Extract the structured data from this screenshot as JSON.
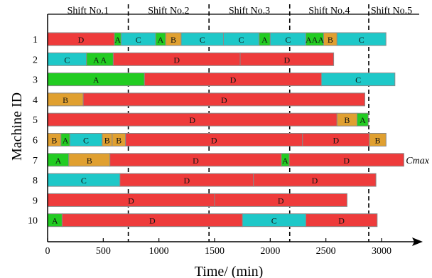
{
  "chart_data": {
    "type": "gantt",
    "xlabel": "Time/ (min)",
    "ylabel": "Machine ID",
    "xlim": [
      0,
      3300
    ],
    "x_ticks": [
      0,
      500,
      1000,
      1500,
      2000,
      2500,
      3000
    ],
    "machines": [
      "1",
      "2",
      "3",
      "4",
      "5",
      "6",
      "7",
      "8",
      "9",
      "10"
    ],
    "colors": {
      "A": "#22cc22",
      "B": "#e0a030",
      "C": "#1ec8c8",
      "D": "#ee3b3b"
    },
    "shifts": [
      {
        "label": "Shift No.1",
        "end": 725
      },
      {
        "label": "Shift No.2",
        "end": 1450
      },
      {
        "label": "Shift No.3",
        "end": 2175
      },
      {
        "label": "Shift No.4",
        "end": 2885
      },
      {
        "label": "Shift No.5"
      }
    ],
    "cmax_label": "Cmax",
    "cmax_machine": "7",
    "tasks": [
      {
        "m": "1",
        "t": "D",
        "s": 0,
        "e": 600,
        "label": "D"
      },
      {
        "m": "1",
        "t": "A",
        "s": 600,
        "e": 660,
        "label": "A"
      },
      {
        "m": "1",
        "t": "C",
        "s": 660,
        "e": 970,
        "label": "C"
      },
      {
        "m": "1",
        "t": "A",
        "s": 970,
        "e": 1060,
        "label": "A"
      },
      {
        "m": "1",
        "t": "B",
        "s": 1060,
        "e": 1200,
        "label": "B"
      },
      {
        "m": "1",
        "t": "C",
        "s": 1200,
        "e": 1580,
        "label": "C"
      },
      {
        "m": "1",
        "t": "C",
        "s": 1580,
        "e": 1900,
        "label": "C"
      },
      {
        "m": "1",
        "t": "A",
        "s": 1900,
        "e": 2000,
        "label": "A"
      },
      {
        "m": "1",
        "t": "C",
        "s": 2000,
        "e": 2320,
        "label": "C"
      },
      {
        "m": "1",
        "t": "A",
        "s": 2320,
        "e": 2480,
        "label": "AAA"
      },
      {
        "m": "1",
        "t": "B",
        "s": 2480,
        "e": 2600,
        "label": "B"
      },
      {
        "m": "1",
        "t": "C",
        "s": 2600,
        "e": 3040,
        "label": "C"
      },
      {
        "m": "2",
        "t": "C",
        "s": 0,
        "e": 350,
        "label": "C"
      },
      {
        "m": "2",
        "t": "A",
        "s": 350,
        "e": 590,
        "label": "A A"
      },
      {
        "m": "2",
        "t": "D",
        "s": 590,
        "e": 1730,
        "label": "D"
      },
      {
        "m": "2",
        "t": "D",
        "s": 1730,
        "e": 2570,
        "label": "D"
      },
      {
        "m": "3",
        "t": "A",
        "s": 0,
        "e": 870,
        "label": "A"
      },
      {
        "m": "3",
        "t": "D",
        "s": 870,
        "e": 2460,
        "label": "D"
      },
      {
        "m": "3",
        "t": "C",
        "s": 2460,
        "e": 3120,
        "label": "C"
      },
      {
        "m": "4",
        "t": "B",
        "s": 0,
        "e": 320,
        "label": "B"
      },
      {
        "m": "4",
        "t": "D",
        "s": 320,
        "e": 2850,
        "label": "D"
      },
      {
        "m": "5",
        "t": "D",
        "s": 0,
        "e": 2600,
        "label": "D"
      },
      {
        "m": "5",
        "t": "B",
        "s": 2600,
        "e": 2780,
        "label": "B"
      },
      {
        "m": "5",
        "t": "A",
        "s": 2780,
        "e": 2880,
        "label": "A"
      },
      {
        "m": "6",
        "t": "B",
        "s": 0,
        "e": 120,
        "label": "B"
      },
      {
        "m": "6",
        "t": "A",
        "s": 120,
        "e": 200,
        "label": "A"
      },
      {
        "m": "6",
        "t": "C",
        "s": 200,
        "e": 490,
        "label": "C"
      },
      {
        "m": "6",
        "t": "B",
        "s": 490,
        "e": 580,
        "label": "B"
      },
      {
        "m": "6",
        "t": "B",
        "s": 580,
        "e": 700,
        "label": "B"
      },
      {
        "m": "6",
        "t": "D",
        "s": 700,
        "e": 2290,
        "label": "D"
      },
      {
        "m": "6",
        "t": "D",
        "s": 2290,
        "e": 2890,
        "label": "D"
      },
      {
        "m": "6",
        "t": "B",
        "s": 2890,
        "e": 3040,
        "label": "B"
      },
      {
        "m": "7",
        "t": "A",
        "s": 0,
        "e": 190,
        "label": "A"
      },
      {
        "m": "7",
        "t": "B",
        "s": 190,
        "e": 560,
        "label": "B"
      },
      {
        "m": "7",
        "t": "D",
        "s": 560,
        "e": 2100,
        "label": "D"
      },
      {
        "m": "7",
        "t": "A",
        "s": 2100,
        "e": 2170,
        "label": "A"
      },
      {
        "m": "7",
        "t": "D",
        "s": 2170,
        "e": 3200,
        "label": "D"
      },
      {
        "m": "8",
        "t": "C",
        "s": 0,
        "e": 650,
        "label": "C"
      },
      {
        "m": "8",
        "t": "D",
        "s": 650,
        "e": 1850,
        "label": "D"
      },
      {
        "m": "8",
        "t": "D",
        "s": 1850,
        "e": 2950,
        "label": "D"
      },
      {
        "m": "9",
        "t": "D",
        "s": 0,
        "e": 1500,
        "label": "D"
      },
      {
        "m": "9",
        "t": "D",
        "s": 1500,
        "e": 2690,
        "label": "D"
      },
      {
        "m": "10",
        "t": "A",
        "s": 0,
        "e": 130,
        "label": "A"
      },
      {
        "m": "10",
        "t": "D",
        "s": 130,
        "e": 1750,
        "label": "D"
      },
      {
        "m": "10",
        "t": "C",
        "s": 1750,
        "e": 2320,
        "label": "C"
      },
      {
        "m": "10",
        "t": "D",
        "s": 2320,
        "e": 2960,
        "label": "D"
      }
    ]
  }
}
